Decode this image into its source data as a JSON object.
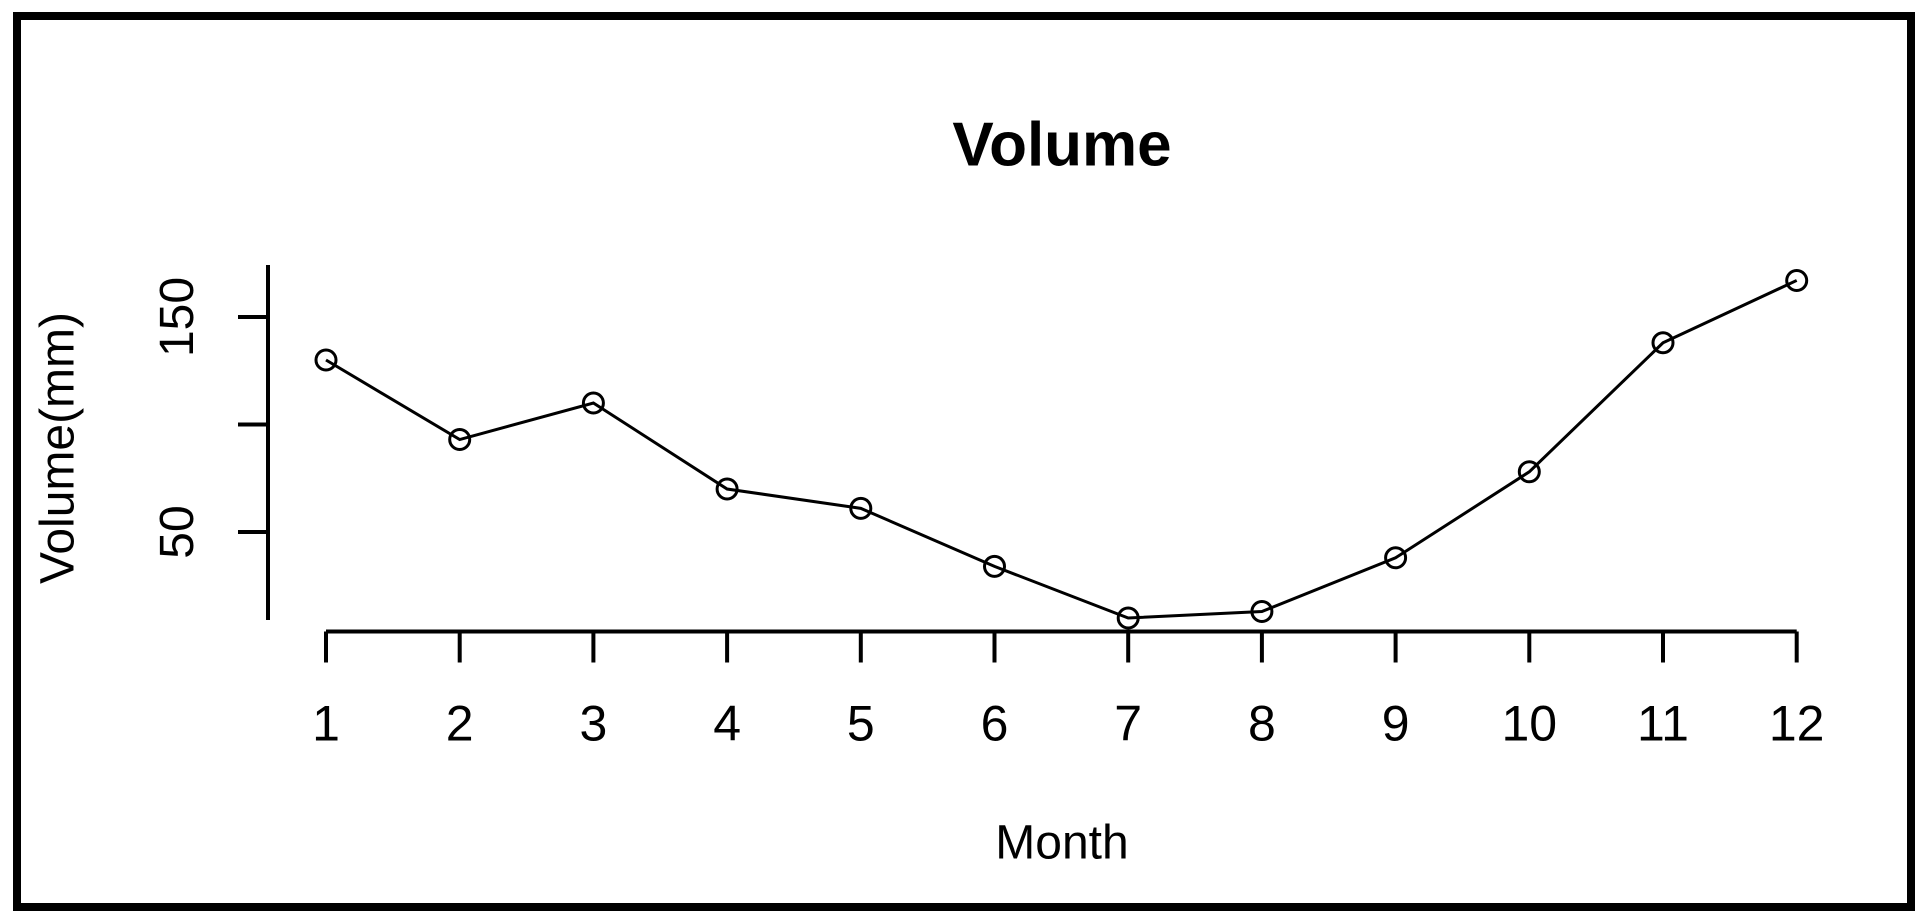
{
  "chart_data": {
    "type": "line",
    "title": "Volume",
    "xlabel": "Month",
    "ylabel": "Volume(mm)",
    "x": [
      1,
      2,
      3,
      4,
      5,
      6,
      7,
      8,
      9,
      10,
      11,
      12
    ],
    "x_tick_labels": [
      "1",
      "2",
      "3",
      "4",
      "5",
      "6",
      "7",
      "8",
      "9",
      "10",
      "11",
      "12"
    ],
    "values": [
      130,
      93,
      110,
      70,
      61,
      34,
      10,
      13,
      38,
      78,
      138,
      167
    ],
    "y_ticks": [
      {
        "value": 50,
        "label": "50"
      },
      {
        "value": 100,
        "label": ""
      },
      {
        "value": 150,
        "label": "150"
      }
    ],
    "xlim": [
      1,
      12
    ],
    "ylim": [
      9,
      174
    ],
    "marker": "open-circle",
    "line_color": "#000000",
    "text_color": "#000000",
    "background_color": "#ffffff",
    "grid": false,
    "legend": false
  }
}
